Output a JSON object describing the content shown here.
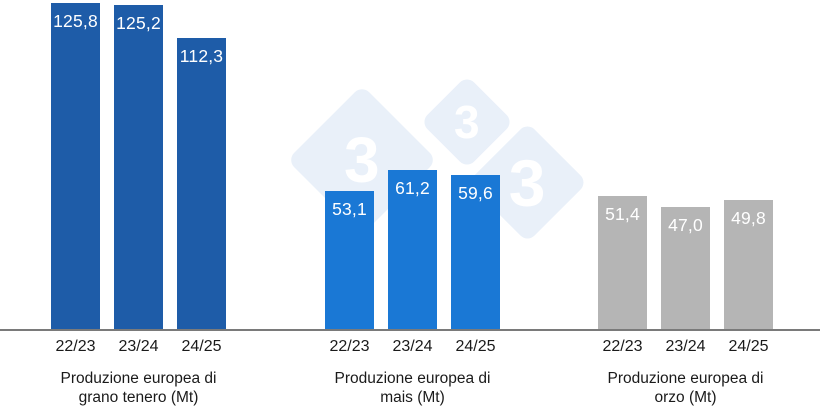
{
  "watermark": {
    "name": "333-logo",
    "glyph": "3",
    "diamond_color": "#e9f0f9",
    "glyph_color": "#ffffff"
  },
  "chart_data": {
    "type": "bar",
    "unit": "Mt",
    "decimal_separator": ",",
    "categories": [
      "22/23",
      "23/24",
      "24/25"
    ],
    "ylim": [
      0,
      127
    ],
    "grid": false,
    "legend": false,
    "background": "#ffffff",
    "axis_line_color": "#7a7a7a",
    "value_label_color": "#ffffff",
    "groups": [
      {
        "label": "Produzione europea di grano tenero (Mt)",
        "label_lines": [
          "Produzione europea di",
          "grano tenero (Mt)"
        ],
        "bar_color": "#1e5ca8",
        "values": [
          125.8,
          125.2,
          112.3
        ],
        "value_labels": [
          "125,8",
          "125,2",
          "112,3"
        ]
      },
      {
        "label": "Produzione europea di mais (Mt)",
        "label_lines": [
          "Produzione europea di",
          "mais (Mt)"
        ],
        "bar_color": "#1a78d5",
        "values": [
          53.1,
          61.2,
          59.6
        ],
        "value_labels": [
          "53,1",
          "61,2",
          "59,6"
        ]
      },
      {
        "label": "Produzione europea di orzo (Mt)",
        "label_lines": [
          "Produzione europea di",
          "orzo (Mt)"
        ],
        "bar_color": "#b5b5b5",
        "values": [
          51.4,
          47.0,
          49.8
        ],
        "value_labels": [
          "51,4",
          "47,0",
          "49,8"
        ]
      }
    ]
  }
}
